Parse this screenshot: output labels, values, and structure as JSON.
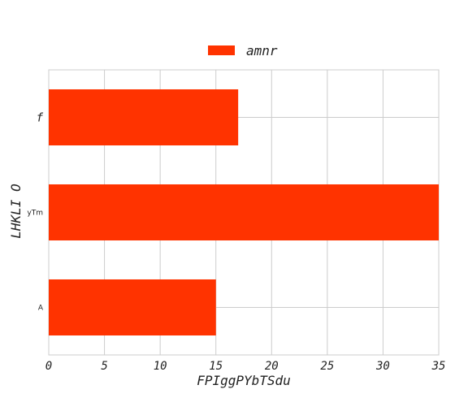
{
  "chart_data": {
    "type": "bar",
    "orientation": "horizontal",
    "categories": [
      "A",
      "yTm",
      "f"
    ],
    "series": [
      {
        "name": "amnr",
        "values": [
          15,
          35,
          17
        ],
        "color": "#ff3300"
      }
    ],
    "xlabel": "FPIggPYbTSdu",
    "ylabel": "LHKLI O",
    "xlim": [
      0,
      35
    ],
    "xticks": [
      "0",
      "5",
      "10",
      "15",
      "20",
      "25",
      "30",
      "35"
    ],
    "grid": true,
    "legend_position": "top-center"
  }
}
